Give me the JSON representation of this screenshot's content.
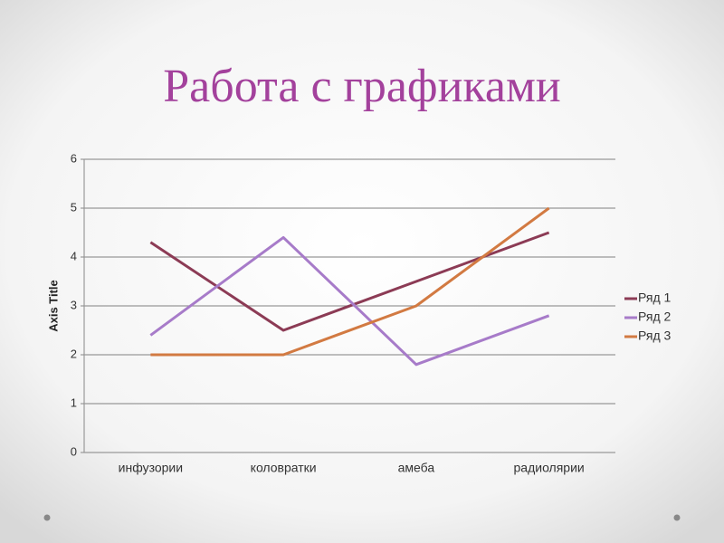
{
  "chart_data": {
    "type": "line",
    "title": "Работа с графиками",
    "y_label": "Axis Title",
    "categories": [
      "инфузории",
      "коловратки",
      "амеба",
      "радиолярии"
    ],
    "series": [
      {
        "name": "Ряд 1",
        "color": "#8c3b55",
        "values": [
          4.3,
          2.5,
          3.5,
          4.5
        ]
      },
      {
        "name": "Ряд 2",
        "color": "#a77bc9",
        "values": [
          2.4,
          4.4,
          1.8,
          2.8
        ]
      },
      {
        "name": "Ряд 3",
        "color": "#d27a42",
        "values": [
          2,
          2,
          3,
          5
        ]
      }
    ],
    "ylim": [
      0,
      6
    ],
    "yticks": [
      0,
      1,
      2,
      3,
      4,
      5,
      6
    ],
    "grid": true,
    "legend": "right"
  }
}
